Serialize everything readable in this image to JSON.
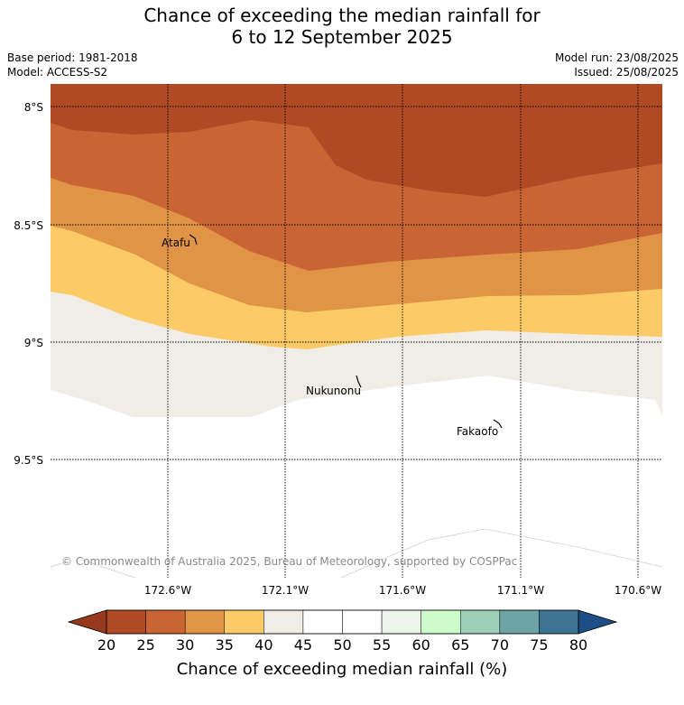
{
  "title_line1": "Chance of exceeding the median rainfall for",
  "title_line2": "6 to 12 September 2025",
  "base_period": "Base period: 1981-2018",
  "model": "Model: ACCESS-S2",
  "model_run": "Model run: 23/08/2025",
  "issued": "Issued: 25/08/2025",
  "lat_labels": [
    "8°S",
    "8.5°S",
    "9°S",
    "9.5°S"
  ],
  "lon_labels": [
    "172.6°W",
    "172.1°W",
    "171.6°W",
    "171.1°W",
    "170.6°W"
  ],
  "places": {
    "atafu": "Atafu",
    "nukunonu": "Nukunonu",
    "fakaofo": "Fakaofo"
  },
  "copyright": "© Commonwealth of Australia 2025, Bureau of Meteorology, supported by COSPPac",
  "colorbar": {
    "ticks": [
      "20",
      "25",
      "30",
      "35",
      "40",
      "45",
      "50",
      "55",
      "60",
      "65",
      "70",
      "75",
      "80"
    ],
    "colors": [
      "#b04a24",
      "#c96434",
      "#e09446",
      "#fdca68",
      "#f0ece6",
      "#ffffff",
      "#ffffff",
      "#ecf6ea",
      "#ccfcc9",
      "#9ecfb9",
      "#6ea4a4",
      "#3d7494"
    ],
    "under_color": "#96391c",
    "over_color": "#1d4e86",
    "label": "Chance of exceeding median rainfall (%)"
  }
}
